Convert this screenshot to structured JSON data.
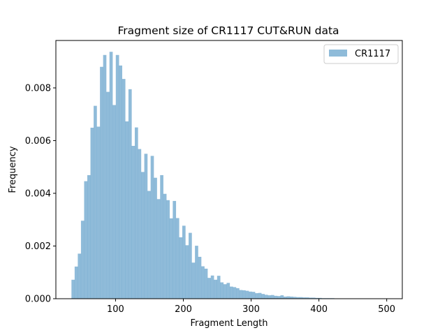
{
  "chart_data": {
    "type": "bar",
    "title": "Fragment size of CR1117 CUT&RUN data",
    "xlabel": "Fragment Length",
    "ylabel": "Frequency",
    "xlim": [
      12,
      523
    ],
    "ylim": [
      0,
      0.0098
    ],
    "x_ticks": [
      100,
      200,
      300,
      400,
      500
    ],
    "x_tick_labels": [
      "100",
      "200",
      "300",
      "400",
      "500"
    ],
    "y_ticks": [
      0,
      0.002,
      0.004,
      0.006,
      0.008
    ],
    "y_tick_labels": [
      "0.000",
      "0.002",
      "0.004",
      "0.006",
      "0.008"
    ],
    "legend": {
      "entries": [
        "CR1117"
      ],
      "placement": "top-right"
    },
    "grid": false,
    "series": [
      {
        "name": "CR1117",
        "color": "#1f77b4",
        "alpha": 0.5,
        "bin_start": 35,
        "bin_width": 4.67,
        "values": [
          0.00072,
          0.00122,
          0.00171,
          0.00296,
          0.00446,
          0.00469,
          0.00649,
          0.00732,
          0.00653,
          0.0088,
          0.00925,
          0.00785,
          0.00937,
          0.00735,
          0.00925,
          0.00885,
          0.00834,
          0.00673,
          0.00795,
          0.0058,
          0.0065,
          0.00568,
          0.00481,
          0.0055,
          0.00409,
          0.00542,
          0.00459,
          0.00378,
          0.00469,
          0.00398,
          0.00374,
          0.00305,
          0.00371,
          0.00306,
          0.00233,
          0.00277,
          0.00203,
          0.0025,
          0.00137,
          0.00201,
          0.00159,
          0.00123,
          0.00114,
          0.00079,
          0.00088,
          0.00072,
          0.00087,
          0.00062,
          0.00055,
          0.0006,
          0.00046,
          0.00044,
          0.0004,
          0.00033,
          0.00032,
          0.0003,
          0.00027,
          0.00026,
          0.00021,
          0.00022,
          0.00018,
          0.00015,
          0.00013,
          0.00014,
          0.00011,
          0.0001,
          0.00013,
          8e-05,
          9e-05,
          8e-05,
          7e-05,
          6e-05,
          6e-05,
          5e-05,
          5e-05,
          4e-05,
          4e-05,
          3e-05,
          3e-05,
          2e-05,
          2e-05,
          2e-05,
          2e-05,
          1e-05,
          1e-05,
          1e-05,
          1e-05,
          1e-05,
          1e-05,
          5e-06,
          5e-06,
          5e-06,
          5e-06,
          5e-06,
          5e-06,
          5e-06,
          5e-06,
          5e-06,
          5e-06,
          5e-06
        ]
      }
    ]
  }
}
